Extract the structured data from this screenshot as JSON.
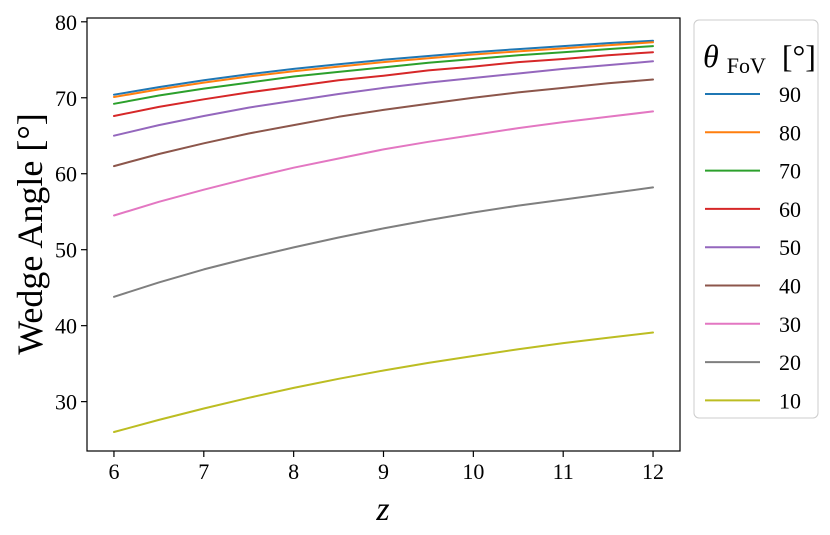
{
  "chart_data": {
    "type": "line",
    "xlabel": "z",
    "ylabel": "Wedge Angle [°]",
    "xlim": [
      5.7,
      12.3
    ],
    "ylim": [
      23.5,
      80.5
    ],
    "xticks": [
      6,
      7,
      8,
      9,
      10,
      11,
      12
    ],
    "yticks": [
      30,
      40,
      50,
      60,
      70,
      80
    ],
    "x": [
      6,
      6.5,
      7,
      7.5,
      8,
      8.5,
      9,
      9.5,
      10,
      10.5,
      11,
      11.5,
      12
    ],
    "legend": {
      "title_main": "θ",
      "title_sub": "FoV",
      "title_unit": "[°]",
      "placement": "outside right"
    },
    "series": [
      {
        "name": "90",
        "color": "#1f77b4",
        "values": [
          70.4,
          71.4,
          72.3,
          73.1,
          73.8,
          74.4,
          75.0,
          75.5,
          76.0,
          76.4,
          76.8,
          77.2,
          77.5
        ]
      },
      {
        "name": "80",
        "color": "#ff7f0e",
        "values": [
          70.1,
          71.1,
          72.0,
          72.8,
          73.5,
          74.1,
          74.7,
          75.2,
          75.7,
          76.1,
          76.5,
          76.9,
          77.3
        ]
      },
      {
        "name": "70",
        "color": "#2ca02c",
        "values": [
          69.2,
          70.3,
          71.2,
          72.0,
          72.8,
          73.4,
          74.0,
          74.6,
          75.1,
          75.6,
          76.0,
          76.4,
          76.8
        ]
      },
      {
        "name": "60",
        "color": "#d62728",
        "values": [
          67.6,
          68.8,
          69.8,
          70.7,
          71.5,
          72.3,
          72.9,
          73.6,
          74.1,
          74.7,
          75.1,
          75.6,
          76.0
        ]
      },
      {
        "name": "50",
        "color": "#9467bd",
        "values": [
          65.0,
          66.4,
          67.6,
          68.7,
          69.6,
          70.5,
          71.3,
          72.0,
          72.6,
          73.2,
          73.8,
          74.3,
          74.8
        ]
      },
      {
        "name": "40",
        "color": "#8c564b",
        "values": [
          61.0,
          62.6,
          64.0,
          65.3,
          66.4,
          67.5,
          68.4,
          69.2,
          70.0,
          70.7,
          71.3,
          71.9,
          72.4
        ]
      },
      {
        "name": "30",
        "color": "#e377c2",
        "values": [
          54.5,
          56.3,
          57.9,
          59.4,
          60.8,
          62.0,
          63.2,
          64.2,
          65.1,
          66.0,
          66.8,
          67.5,
          68.2
        ]
      },
      {
        "name": "20",
        "color": "#7f7f7f",
        "values": [
          43.8,
          45.7,
          47.4,
          48.9,
          50.3,
          51.6,
          52.8,
          53.9,
          54.9,
          55.8,
          56.6,
          57.4,
          58.2
        ]
      },
      {
        "name": "10",
        "color": "#bcbd22",
        "values": [
          26.0,
          27.6,
          29.1,
          30.5,
          31.8,
          33.0,
          34.1,
          35.1,
          36.0,
          36.9,
          37.7,
          38.4,
          39.1
        ]
      }
    ]
  }
}
